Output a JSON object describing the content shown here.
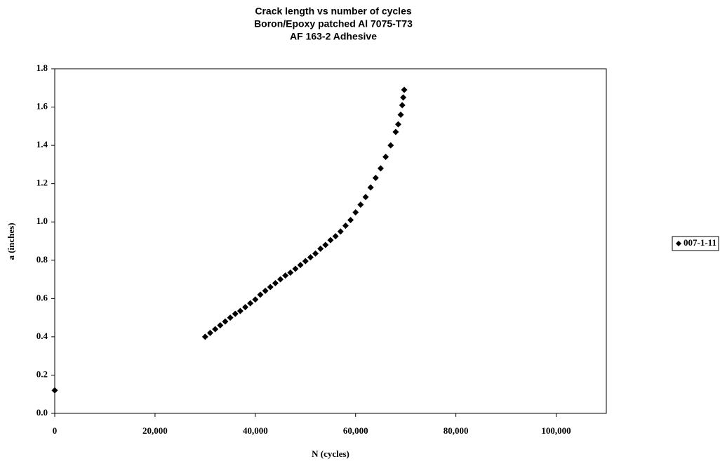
{
  "chart_data": {
    "type": "scatter",
    "title": [
      "Crack length vs number of cycles",
      "Boron/Epoxy patched Al 7075-T73",
      "AF 163-2 Adhesive"
    ],
    "x_label": "N (cycles)",
    "y_label": "a (inches)",
    "x": [
      0,
      30000,
      31000,
      32000,
      33000,
      34000,
      35000,
      36000,
      37000,
      38000,
      39000,
      40000,
      41000,
      42000,
      43000,
      44000,
      45000,
      46000,
      47000,
      48000,
      49000,
      50000,
      51000,
      52000,
      53000,
      54000,
      55000,
      56000,
      57000,
      58000,
      59000,
      60000,
      61000,
      62000,
      63000,
      64000,
      65000,
      66000,
      67000,
      68000,
      68500,
      69000,
      69300,
      69500,
      69700
    ],
    "series": [
      {
        "name": "007-1-11",
        "color": "#000000",
        "values": [
          0.12,
          0.4,
          0.42,
          0.44,
          0.46,
          0.48,
          0.5,
          0.52,
          0.535,
          0.555,
          0.575,
          0.595,
          0.62,
          0.64,
          0.66,
          0.68,
          0.7,
          0.72,
          0.735,
          0.755,
          0.775,
          0.795,
          0.815,
          0.835,
          0.86,
          0.88,
          0.905,
          0.925,
          0.95,
          0.98,
          1.01,
          1.05,
          1.09,
          1.13,
          1.18,
          1.23,
          1.28,
          1.34,
          1.4,
          1.47,
          1.51,
          1.56,
          1.61,
          1.65,
          1.69
        ]
      }
    ],
    "xlim": [
      0,
      110000
    ],
    "xticks": [
      0,
      {
        "value": 20000,
        "label": "20,000"
      },
      {
        "value": 40000,
        "label": "40,000"
      },
      {
        "value": 60000,
        "label": "60,000"
      },
      {
        "value": 80000,
        "label": "80,000"
      },
      {
        "value": 100000,
        "label": "100,000"
      }
    ],
    "ylim": [
      0,
      1.8
    ],
    "yticks": [
      {
        "value": 0,
        "label": "0.0"
      },
      0.2,
      0.4,
      0.6,
      0.8,
      {
        "value": 1,
        "label": "1.0"
      },
      1.2,
      1.4,
      1.6,
      1.8
    ],
    "grid": false,
    "legend": "right"
  }
}
